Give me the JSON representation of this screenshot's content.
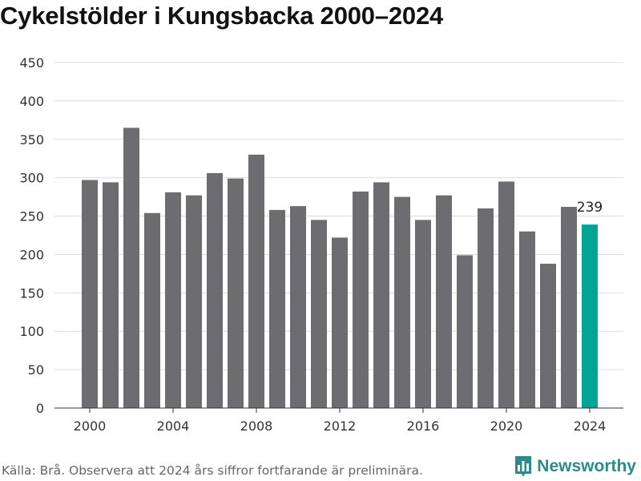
{
  "chart_data": {
    "type": "bar",
    "title": "Cykelstölder i Kungsbacka 2000–2024",
    "xlabel": "",
    "ylabel": "",
    "categories": [
      "2000",
      "2001",
      "2002",
      "2003",
      "2004",
      "2005",
      "2006",
      "2007",
      "2008",
      "2009",
      "2010",
      "2011",
      "2012",
      "2013",
      "2014",
      "2015",
      "2016",
      "2017",
      "2018",
      "2019",
      "2020",
      "2021",
      "2022",
      "2023",
      "2024"
    ],
    "values": [
      297,
      294,
      365,
      254,
      281,
      277,
      306,
      299,
      330,
      258,
      263,
      245,
      222,
      282,
      294,
      275,
      245,
      277,
      199,
      260,
      295,
      230,
      188,
      262,
      239
    ],
    "ylim": [
      0,
      450
    ],
    "yticks": [
      0,
      50,
      100,
      150,
      200,
      250,
      300,
      350,
      400,
      450
    ],
    "xticks": [
      "2000",
      "2004",
      "2008",
      "2012",
      "2016",
      "2020",
      "2024"
    ],
    "highlight": {
      "category": "2024",
      "label": "239"
    },
    "grid": true,
    "colors": {
      "bar": "#6d6c70",
      "highlight": "#00a597"
    }
  },
  "footer": {
    "source": "Källa: Brå. Observera att 2024 års siffror fortfarande är preliminära.",
    "brand": "Newsworthy",
    "brand_icon": "newsworthy-logo-icon"
  }
}
